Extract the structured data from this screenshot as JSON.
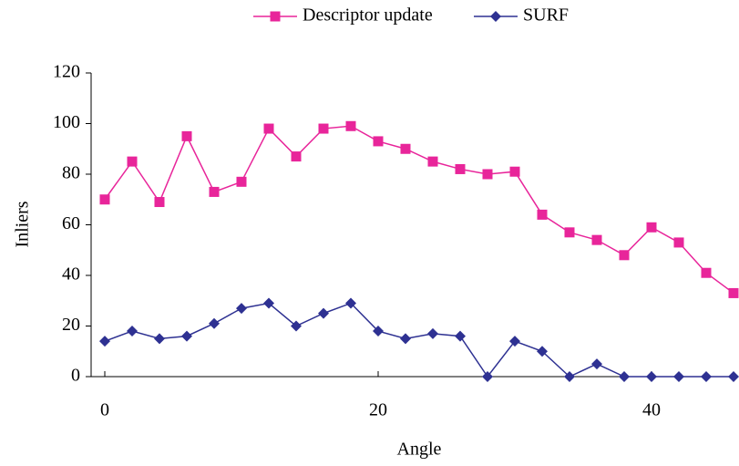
{
  "chart_data": {
    "type": "line",
    "x_label": "Angle",
    "y_label": "Inliers",
    "x": [
      0,
      2,
      4,
      6,
      8,
      10,
      12,
      14,
      16,
      18,
      20,
      22,
      24,
      26,
      28,
      30,
      32,
      34,
      36,
      38,
      40,
      42,
      44,
      46
    ],
    "series": [
      {
        "name": "Descriptor update",
        "color": "#e8259a",
        "marker": "square",
        "values": [
          70,
          85,
          69,
          95,
          73,
          77,
          98,
          87,
          98,
          99,
          93,
          90,
          85,
          82,
          80,
          81,
          64,
          57,
          54,
          48,
          59,
          53,
          41,
          33
        ]
      },
      {
        "name": "SURF",
        "color": "#2e3192",
        "marker": "diamond",
        "values": [
          14,
          18,
          15,
          16,
          21,
          27,
          29,
          20,
          25,
          29,
          18,
          15,
          17,
          16,
          0,
          14,
          10,
          0,
          5,
          0,
          0,
          0,
          0,
          0
        ]
      }
    ],
    "xlim": [
      -1,
      46
    ],
    "xticks": [
      0,
      20,
      40
    ],
    "ylim": [
      0,
      120
    ],
    "yticks": [
      0,
      20,
      40,
      60,
      80,
      100,
      120
    ],
    "legend": "top"
  }
}
